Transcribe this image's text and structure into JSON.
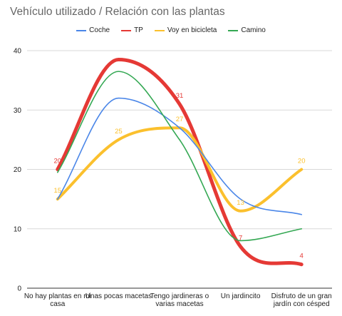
{
  "chart_data": {
    "type": "line",
    "title": "Vehículo utilizado / Relación con las plantas",
    "xlabel": "",
    "ylabel": "",
    "categories": [
      [
        "No hay plantas en mi",
        "casa"
      ],
      [
        "Unas pocas macetas"
      ],
      [
        "Tengo jardineras o",
        "varias macetas"
      ],
      [
        "Un jardincito"
      ],
      [
        "Disfruto de un gran",
        "jardín con césped"
      ]
    ],
    "ylim": [
      0,
      40
    ],
    "yticks": [
      0,
      10,
      20,
      30,
      40
    ],
    "grid": true,
    "legend_position": "top",
    "series": [
      {
        "name": "Coche",
        "color": "#4a86e8",
        "values": [
          15,
          32,
          27,
          15,
          12.4
        ],
        "labels": [
          null,
          null,
          null,
          null,
          null
        ]
      },
      {
        "name": "TP",
        "color": "#e53935",
        "values": [
          20,
          38.5,
          31,
          7,
          4
        ],
        "labels": [
          "20",
          null,
          "31",
          "7",
          "4"
        ]
      },
      {
        "name": "Voy en bicicleta",
        "color": "#fbc02d",
        "values": [
          15,
          25,
          27,
          13,
          20
        ],
        "labels": [
          "15",
          "25",
          "27",
          "13",
          "20"
        ]
      },
      {
        "name": "Camino",
        "color": "#34a853",
        "values": [
          19.5,
          36.5,
          25,
          8,
          10
        ],
        "labels": [
          null,
          null,
          null,
          null,
          null
        ]
      }
    ]
  }
}
